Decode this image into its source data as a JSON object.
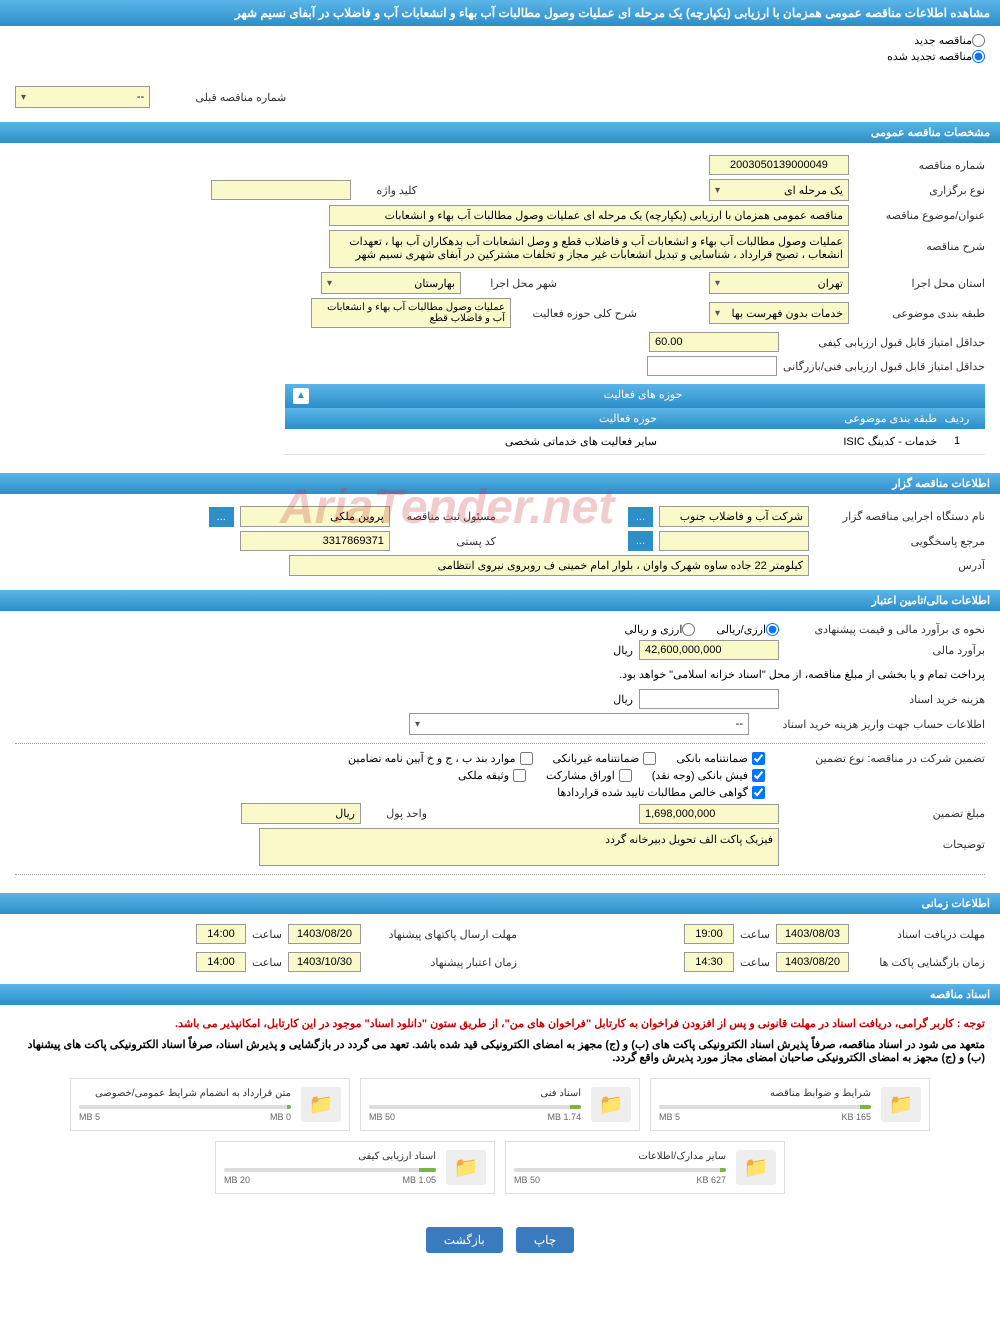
{
  "header": {
    "title": "مشاهده اطلاعات مناقصه عمومی همزمان با ارزیابی (یکپارچه) یک مرحله ای عملیات وصول مطالبات آب بهاء و انشعابات آب و فاضلاب در آبفای نسیم شهر"
  },
  "radio_options": {
    "new_tender": "مناقصه جدید",
    "renewed_tender": "مناقصه تجدید شده"
  },
  "prev_number": {
    "label": "شماره مناقصه قبلی",
    "value": "--"
  },
  "sections": {
    "general_specs": "مشخصات مناقصه عمومی",
    "activity_areas": "حوزه های فعالیت",
    "organizer_info": "اطلاعات مناقصه گزار",
    "financial_info": "اطلاعات مالی/تامین اعتبار",
    "time_info": "اطلاعات زمانی",
    "tender_docs": "اسناد مناقصه"
  },
  "general": {
    "tender_number_label": "شماره مناقصه",
    "tender_number": "2003050139000049",
    "holding_type_label": "نوع برگزاری",
    "holding_type": "یک مرحله ای",
    "keyword_label": "کلید واژه",
    "keyword": "",
    "subject_label": "عنوان/موضوع مناقصه",
    "subject": "مناقصه عمومی همزمان با ارزیابی (یکپارچه) یک مرحله ای عملیات وصول مطالبات آب بهاء و انشعابات",
    "description_label": "شرح مناقصه",
    "description": "عملیات وصول مطالبات آب بهاء و انشعابات آب و فاضلاب قطع و وصل انشعابات آب بدهکاران آب بها ، تعهدات انشعاب ، تصیح قرارداد ، شناسایی و تبدیل انشعابات غیر مجاز و تخلفات مشترکین در آبفای شهری نسیم شهر",
    "province_label": "استان محل اجرا",
    "province": "تهران",
    "city_label": "شهر محل اجرا",
    "city": "بهارستان",
    "subject_class_label": "طبقه بندی موضوعی",
    "subject_class": "خدمات بدون فهرست بها",
    "activity_desc_label": "شرح کلی حوزه فعالیت",
    "activity_desc": "عملیات وصول مطالبات آب بهاء و انشعابات آب و فاضلاب قطع",
    "min_quality_score_label": "حداقل امتیاز قابل قبول ارزیابی کیفی",
    "min_quality_score": "60.00",
    "min_tech_score_label": "حداقل امتیاز قابل قبول ارزیابی فنی/بازرگانی",
    "min_tech_score": ""
  },
  "activity_table": {
    "col_row": "ردیف",
    "col_subject": "طبقه بندی موضوعی",
    "col_area": "حوزه فعالیت",
    "row1_num": "1",
    "row1_subject": "خدمات - کدینگ ISIC",
    "row1_area": "سایر فعالیت های خدماتی شخصی"
  },
  "organizer": {
    "exec_label": "نام دستگاه اجرایی مناقصه گزار",
    "exec": "شرکت آب و فاضلاب جنوب ",
    "reg_officer_label": "مسئول ثبت مناقصه",
    "reg_officer": "پروین  ملکی",
    "response_ref_label": "مرجع پاسخگویی",
    "response_ref": "",
    "postal_label": "کد پستی",
    "postal": "3317869371",
    "address_label": "آدرس",
    "address": "کیلومتر 22 جاده ساوه شهرک واوان ، بلوار امام خمینی ف روبروی نیروی انتظامی"
  },
  "financial": {
    "estimate_method_label": "نحوه ی برآورد مالی و قیمت پیشنهادی",
    "radio_currency": "ارزی/ریالی",
    "radio_currency2": "ارزی و ریالی",
    "estimate_label": "برآورد مالی",
    "estimate": "42,600,000,000",
    "currency_unit": "ریال",
    "payment_note": "پرداخت تمام و یا بخشی از مبلغ مناقصه، از محل \"اسناد خزانه اسلامی\" خواهد بود.",
    "doc_cost_label": "هزینه خرید اسناد",
    "doc_cost": "",
    "account_info_label": "اطلاعات حساب جهت واریز هزینه خرید اسناد",
    "account_info": "--",
    "guarantee_type_label": "تضمین شرکت در مناقصه:   نوع تضمین",
    "cb_bank_guarantee": "ضمانتنامه بانکی",
    "cb_nonbank_guarantee": "ضمانتنامه غیربانکی",
    "cb_bylaw": "موارد بند ب ، ج و خ آیین نامه تضامین",
    "cb_bank_receipt": "فیش بانکی (وجه نقد)",
    "cb_bonds": "اوراق مشارکت",
    "cb_property": "وثیقه ملکی",
    "cb_certificate": "گواهی خالص مطالبات تایید شده قراردادها",
    "guarantee_amount_label": "مبلغ تضمین",
    "guarantee_amount": "1,698,000,000",
    "currency_label": "واحد پول",
    "currency": "ریال",
    "notes_label": "توضیحات",
    "notes": "فیزیک پاکت الف تحویل دبیرخانه گردد"
  },
  "timing": {
    "receive_deadline_label": "مهلت دریافت اسناد",
    "receive_date": "1403/08/03",
    "hour_label": "ساعت",
    "receive_time": "19:00",
    "send_deadline_label": "مهلت ارسال پاکتهای پیشنهاد",
    "send_date": "1403/08/20",
    "send_time": "14:00",
    "open_time_label": "زمان بازگشایی پاکت ها",
    "open_date": "1403/08/20",
    "open_time": "14:30",
    "validity_label": "زمان اعتبار پیشنهاد",
    "validity_date": "1403/10/30",
    "validity_time": "14:00"
  },
  "docs_notice": {
    "line1": "توجه : کاربر گرامی، دریافت اسناد در مهلت قانونی و پس از افزودن فراخوان به کارتابل \"فراخوان های من\"، از طریق ستون \"دانلود اسناد\" موجود در این کارتابل، امکانپذیر می باشد.",
    "line2": "متعهد می شود در اسناد مناقصه، صرفاً پذیرش اسناد الکترونیکی پاکت های (ب) و (ج) مجهز به امضای الکترونیکی قید شده باشد. تعهد می گردد در بازگشایی و پذیرش اسناد، صرفاً اسناد الکترونیکی پاکت های پیشنهاد (ب) و (ج) مجهز به امضای الکترونیکی صاحبان امضای مجاز مورد پذیرش واقع گردد."
  },
  "documents": [
    {
      "title": "شرایط و ضوابط مناقصه",
      "used": "165 KB",
      "total": "5 MB",
      "pct": 5
    },
    {
      "title": "اسناد فنی",
      "used": "1.74 MB",
      "total": "50 MB",
      "pct": 5
    },
    {
      "title": "متن قرارداد به انضمام شرایط عمومی/خصوصی",
      "used": "0 MB",
      "total": "5 MB",
      "pct": 2
    },
    {
      "title": "سایر مدارک/اطلاعات",
      "used": "627 KB",
      "total": "50 MB",
      "pct": 3
    },
    {
      "title": "اسناد ارزیابی کیفی",
      "used": "1.05 MB",
      "total": "20 MB",
      "pct": 8
    }
  ],
  "buttons": {
    "print": "چاپ",
    "back": "بازگشت"
  },
  "watermark": "AriaTender.net"
}
